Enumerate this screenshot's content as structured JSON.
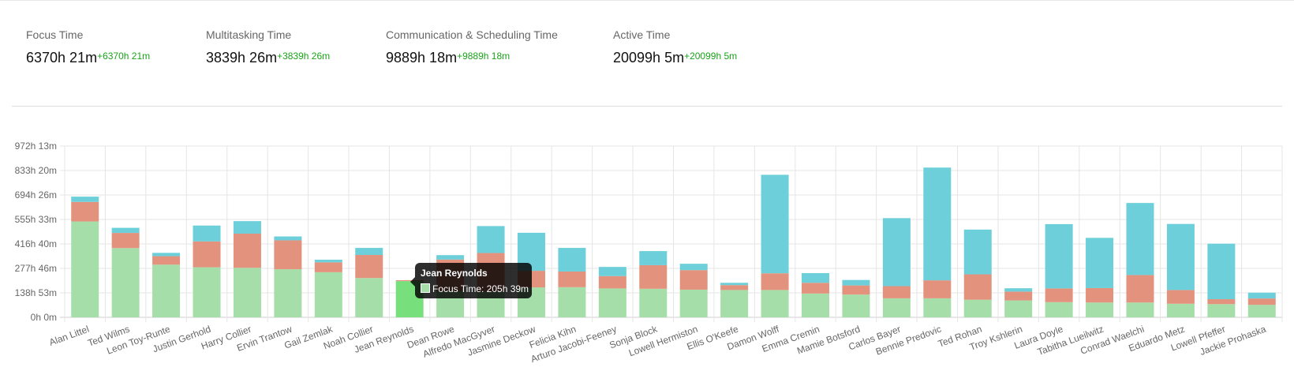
{
  "metrics": [
    {
      "label": "Focus Time",
      "value": "6370h 21m",
      "delta": "+6370h 21m"
    },
    {
      "label": "Multitasking Time",
      "value": "3839h 26m",
      "delta": "+3839h 26m"
    },
    {
      "label": "Communication & Scheduling Time",
      "value": "9889h 18m",
      "delta": "+9889h 18m"
    },
    {
      "label": "Active Time",
      "value": "20099h 5m",
      "delta": "+20099h 5m"
    }
  ],
  "tooltip": {
    "title": "Jean Reynolds",
    "body": "Focus Time: 205h 39m"
  },
  "chart_data": {
    "type": "bar",
    "stacked": true,
    "categories": [
      "Alan Littel",
      "Ted Wilms",
      "Leon Toy-Runte",
      "Justin Gerhold",
      "Harry Collier",
      "Ervin Trantow",
      "Gail Zemlak",
      "Noah Collier",
      "Jean Reynolds",
      "Dean Rowe",
      "Alfredo MacGyver",
      "Jasmine Deckow",
      "Felicia Kihn",
      "Arturo Jacobi-Feeney",
      "Sonja Block",
      "Lowell Hermiston",
      "Ellis O'Keefe",
      "Damon Wolff",
      "Emma Cremin",
      "Mamie Botsford",
      "Carlos Bayer",
      "Bennie Predovic",
      "Ted Rohan",
      "Troy Kshlerin",
      "Laura Doyle",
      "Tabitha Lueilwitz",
      "Conrad Waelchi",
      "Eduardo Metz",
      "Lowell Pfeffer",
      "Jackie Prohaska"
    ],
    "series": [
      {
        "values": [
          544,
          393,
          299,
          284,
          281,
          273,
          256,
          223,
          205.65,
          148,
          145,
          170,
          171,
          164,
          162,
          157,
          155,
          155,
          135,
          129,
          108,
          108,
          100,
          96,
          86,
          84,
          84,
          77,
          75,
          71
        ],
        "color": "#a5dea8"
      },
      {
        "values": [
          111,
          86,
          48,
          147,
          194,
          164,
          56,
          131,
          5,
          180,
          220,
          94,
          89,
          70,
          134,
          111,
          28,
          95,
          61,
          52,
          69,
          102,
          144,
          50,
          78,
          82,
          156,
          78,
          28,
          36
        ],
        "color": "#e3937d"
      },
      {
        "values": [
          30,
          29,
          19,
          90,
          71,
          22,
          15,
          40,
          0,
          25,
          153,
          216,
          134,
          52,
          80,
          36,
          13,
          559,
          55,
          31,
          386,
          640,
          254,
          19,
          365,
          285,
          409,
          375,
          315,
          33
        ],
        "color": "#6dcfda"
      }
    ],
    "highlight_color": "#77e07d",
    "highlight_index": 8,
    "y_ticks": [
      "0h 0m",
      "138h 53m",
      "277h 46m",
      "416h 40m",
      "555h 33m",
      "694h 26m",
      "833h 20m",
      "972h 13m"
    ],
    "ylim": [
      0,
      972.2
    ],
    "grid": true,
    "xlabel": "",
    "ylabel": ""
  }
}
